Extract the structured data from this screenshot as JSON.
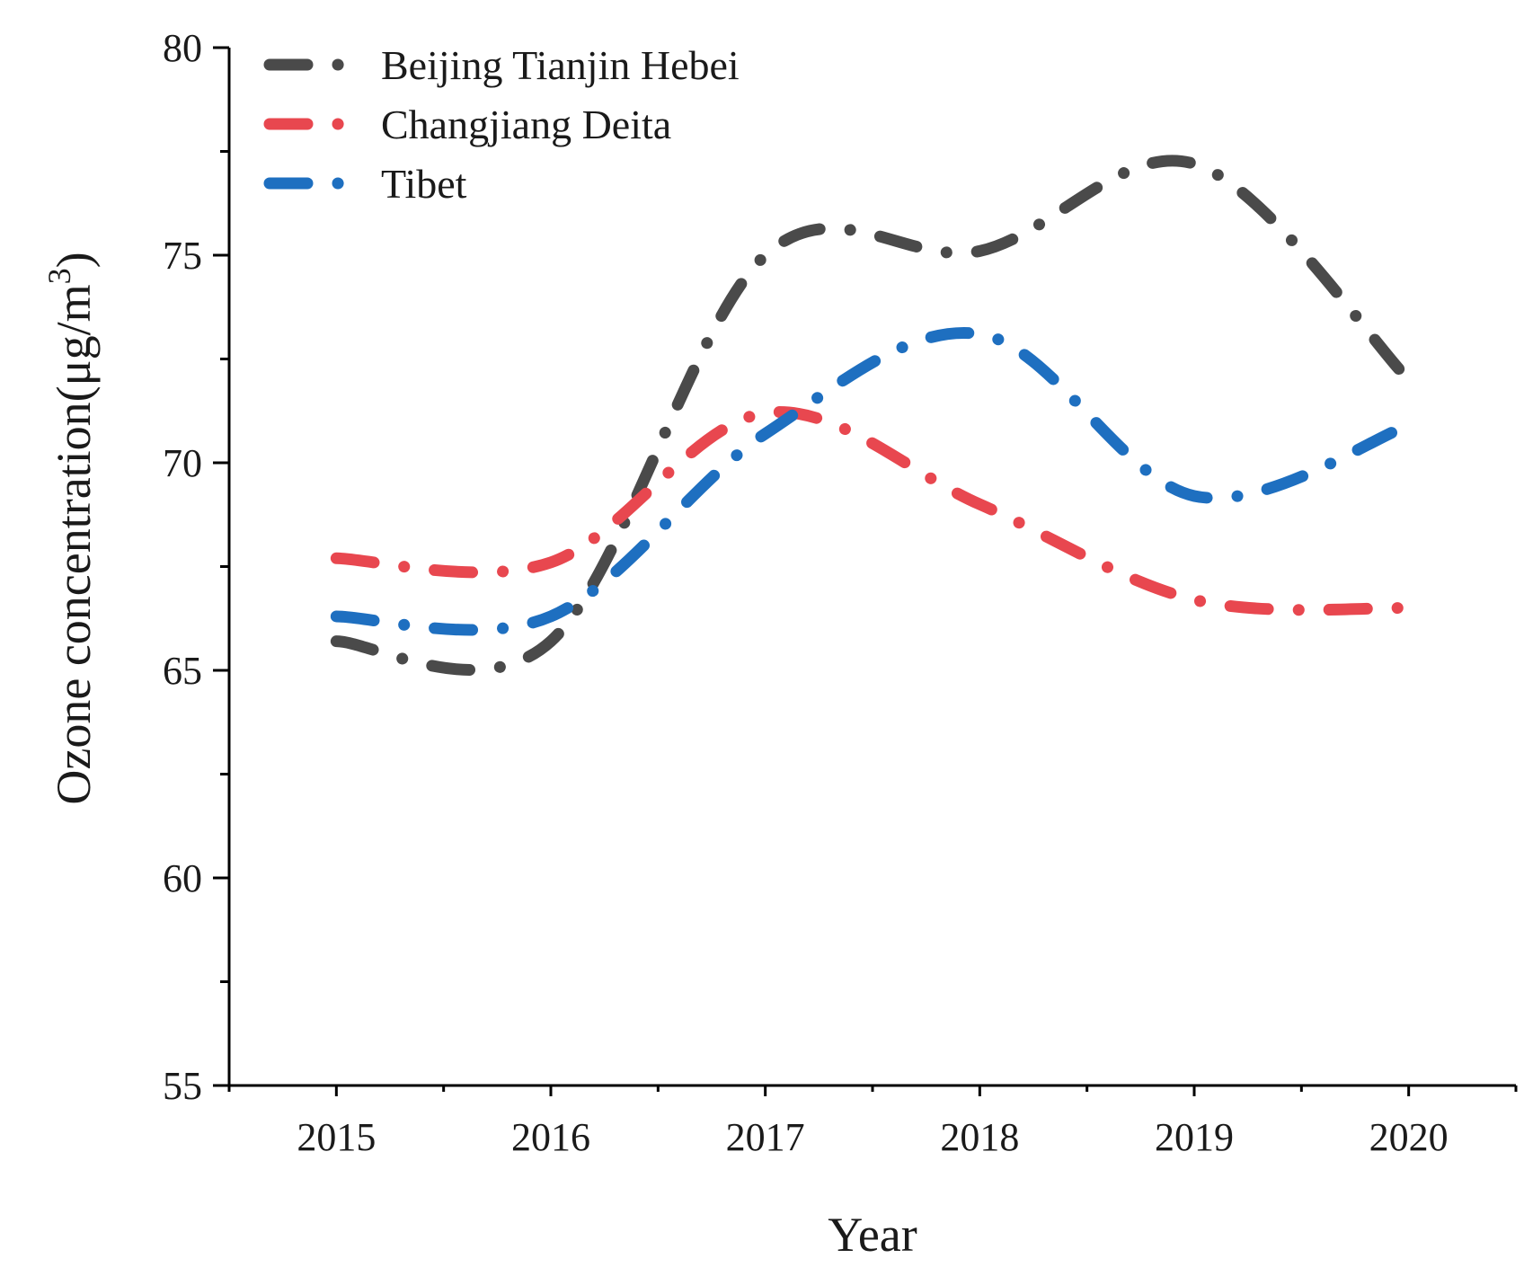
{
  "chart_data": {
    "type": "line",
    "title": "",
    "xlabel": "Year",
    "ylabel_main": "Ozone concentration(μg/m",
    "ylabel_superscript": "3",
    "ylabel_close": ")",
    "xlim": [
      2014.5,
      2020.5
    ],
    "ylim": [
      55,
      80
    ],
    "x": [
      2015,
      2016,
      2017,
      2018,
      2019,
      2020
    ],
    "x_tick_labels": [
      "2015",
      "2016",
      "2017",
      "2018",
      "2019",
      "2020"
    ],
    "y_ticks": [
      55,
      60,
      65,
      70,
      75,
      80
    ],
    "y_tick_labels": [
      "55",
      "60",
      "65",
      "70",
      "75",
      "80"
    ],
    "grid": false,
    "legend_position": "top-left",
    "line_style": "dash-dot",
    "series": [
      {
        "name": "Beijing Tianjin Hebei",
        "color": "#4a4a4a",
        "values": [
          65.7,
          65.7,
          75.0,
          75.1,
          77.2,
          72.0
        ]
      },
      {
        "name": "Changjiang Deita",
        "color": "#e8474f",
        "values": [
          67.7,
          67.6,
          71.2,
          69.0,
          66.7,
          66.5
        ]
      },
      {
        "name": "Tibet",
        "color": "#1e6fc0",
        "values": [
          66.3,
          66.3,
          70.7,
          73.1,
          69.2,
          70.9
        ]
      }
    ]
  }
}
